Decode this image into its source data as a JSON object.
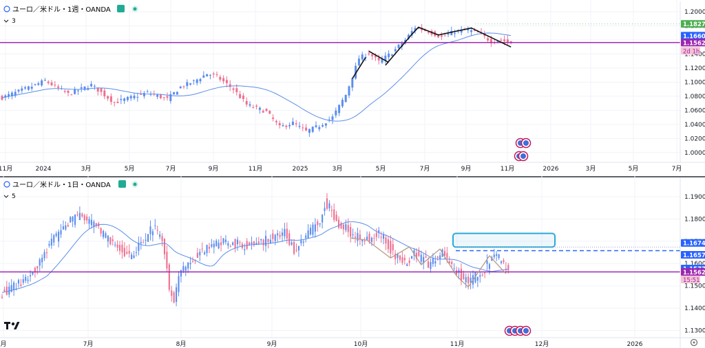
{
  "top": {
    "title": "ユーロ／米ドル・1週・OANDA",
    "legend_count": "3",
    "y_ticks": [
      1.2,
      1.18,
      1.16,
      1.14,
      1.12,
      1.1,
      1.08,
      1.06,
      1.04,
      1.02,
      1.0
    ],
    "x_labels": [
      "11月",
      "2024",
      "3月",
      "5月",
      "7月",
      "9月",
      "11月",
      "2025",
      "3月",
      "5月",
      "7月",
      "9月",
      "11月",
      "2026",
      "3月",
      "5月",
      "7月"
    ],
    "price_tags": [
      {
        "value": 1.18277,
        "text": "1.18277",
        "color": "#4caf50"
      },
      {
        "value": 1.16602,
        "text": "1.16602",
        "color": "#2962ff"
      },
      {
        "value": 1.15628,
        "text": "1.15628",
        "color": "#9c27b0"
      }
    ],
    "countdown": "2d 1h",
    "hline": 1.15628,
    "dotted_line": 1.18277
  },
  "bottom": {
    "title": "ユーロ／米ドル・1日・OANDA",
    "legend_count": "5",
    "y_ticks": [
      1.19,
      1.18,
      1.17,
      1.16,
      1.15,
      1.14,
      1.13
    ],
    "x_labels": [
      "月",
      "7月",
      "8月",
      "9月",
      "10月",
      "11月",
      "12月",
      "2026"
    ],
    "price_tags": [
      {
        "value": 1.1674,
        "text": "1.16740",
        "color": "#2962ff"
      },
      {
        "value": 1.16576,
        "text": "1.16576",
        "color": "#2962ff"
      },
      {
        "value": 1.15775,
        "text": "1.15775",
        "color": "#2962ff"
      },
      {
        "value": 1.15628,
        "text": "1.15628",
        "color": "#9c27b0"
      }
    ],
    "countdown": "15:51",
    "hline": 1.15628,
    "dashed_line": 1.16576,
    "dotted_line": 1.1674,
    "box_range": [
      1.1674,
      1.1735
    ]
  },
  "colors": {
    "up": "#5b8def",
    "down": "#ef6f8f",
    "ma": "#5a8dea",
    "hline": "#9c27b0",
    "box": "#29a9d8"
  },
  "chart_data": [
    {
      "type": "candlestick",
      "title": "ユーロ／米ドル・1週・OANDA",
      "ylim": [
        0.99,
        1.205
      ],
      "series": [
        {
          "name": "EUR/USD weekly (approx.)",
          "waypoints": [
            [
              0,
              1.078
            ],
            [
              8,
              1.092
            ],
            [
              13,
              1.102
            ],
            [
              20,
              1.083
            ],
            [
              27,
              1.096
            ],
            [
              34,
              1.071
            ],
            [
              44,
              1.085
            ],
            [
              50,
              1.076
            ],
            [
              54,
              1.093
            ],
            [
              58,
              1.101
            ],
            [
              62,
              1.112
            ],
            [
              65,
              1.108
            ],
            [
              70,
              1.09
            ],
            [
              74,
              1.068
            ],
            [
              80,
              1.058
            ],
            [
              84,
              1.036
            ],
            [
              88,
              1.042
            ],
            [
              92,
              1.03
            ],
            [
              96,
              1.038
            ],
            [
              100,
              1.05
            ],
            [
              104,
              1.082
            ],
            [
              108,
              1.134
            ],
            [
              111,
              1.141
            ],
            [
              114,
              1.129
            ],
            [
              118,
              1.142
            ],
            [
              122,
              1.16
            ],
            [
              125,
              1.178
            ],
            [
              129,
              1.172
            ],
            [
              133,
              1.164
            ],
            [
              137,
              1.172
            ],
            [
              141,
              1.174
            ],
            [
              144,
              1.17
            ],
            [
              148,
              1.158
            ],
            [
              151,
              1.16
            ],
            [
              154,
              1.156
            ]
          ]
        }
      ]
    },
    {
      "type": "candlestick",
      "title": "ユーロ／米ドル・1日・OANDA",
      "ylim": [
        1.1265,
        1.1955
      ],
      "series": [
        {
          "name": "EUR/USD daily (approx.)",
          "waypoints": [
            [
              0,
              1.147
            ],
            [
              6,
              1.15
            ],
            [
              12,
              1.155
            ],
            [
              20,
              1.168
            ],
            [
              28,
              1.178
            ],
            [
              33,
              1.182
            ],
            [
              40,
              1.176
            ],
            [
              48,
              1.168
            ],
            [
              54,
              1.163
            ],
            [
              60,
              1.17
            ],
            [
              64,
              1.176
            ],
            [
              68,
              1.172
            ],
            [
              70,
              1.16
            ],
            [
              71,
              1.148
            ],
            [
              73,
              1.142
            ],
            [
              75,
              1.154
            ],
            [
              78,
              1.16
            ],
            [
              83,
              1.164
            ],
            [
              90,
              1.168
            ],
            [
              96,
              1.17
            ],
            [
              102,
              1.168
            ],
            [
              108,
              1.168
            ],
            [
              114,
              1.172
            ],
            [
              120,
              1.174
            ],
            [
              124,
              1.166
            ],
            [
              128,
              1.172
            ],
            [
              132,
              1.176
            ],
            [
              135,
              1.18
            ],
            [
              137,
              1.187
            ],
            [
              139,
              1.186
            ],
            [
              142,
              1.178
            ],
            [
              146,
              1.176
            ],
            [
              150,
              1.172
            ],
            [
              156,
              1.171
            ],
            [
              160,
              1.173
            ],
            [
              163,
              1.17
            ],
            [
              166,
              1.165
            ],
            [
              169,
              1.162
            ],
            [
              172,
              1.16
            ],
            [
              175,
              1.164
            ],
            [
              178,
              1.162
            ],
            [
              182,
              1.159
            ],
            [
              184,
              1.163
            ],
            [
              187,
              1.165
            ],
            [
              190,
              1.16
            ],
            [
              193,
              1.157
            ],
            [
              196,
              1.153
            ],
            [
              199,
              1.152
            ],
            [
              202,
              1.155
            ],
            [
              205,
              1.158
            ],
            [
              207,
              1.16
            ],
            [
              209,
              1.164
            ],
            [
              211,
              1.162
            ],
            [
              213,
              1.16
            ],
            [
              215,
              1.155
            ]
          ]
        }
      ]
    }
  ]
}
